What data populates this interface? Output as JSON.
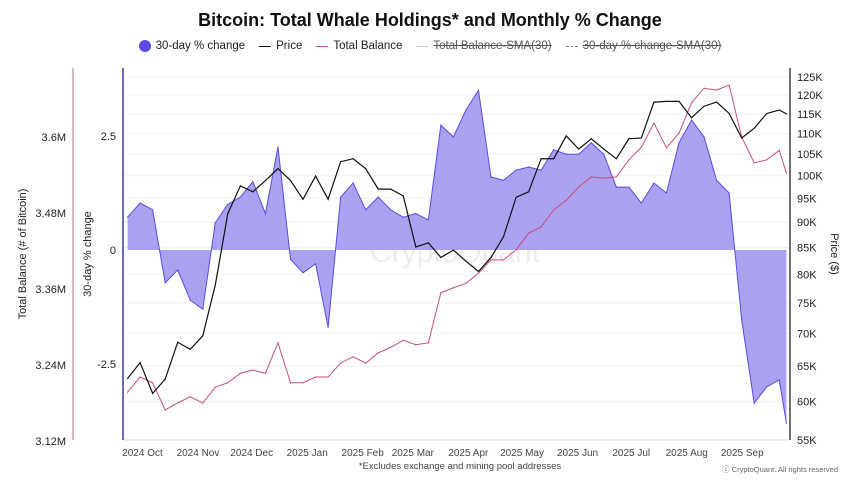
{
  "chart_data": {
    "type": "area+line",
    "title": "Bitcoin: Total Whale Holdings* and Monthly % Change",
    "footnote": "*Excludes exchange and mining pool addresses",
    "copyright": "ⓒ CryptoQuant. All rights reserved",
    "watermark": "CryptoQuant",
    "legend": [
      {
        "label": "30-day % change",
        "marker": "circle",
        "color": "#5b4ce0",
        "disabled": false
      },
      {
        "label": "Price",
        "marker": "line",
        "color": "#111111",
        "disabled": false
      },
      {
        "label": "Total Balance",
        "marker": "line",
        "color": "#c9507a",
        "disabled": false
      },
      {
        "label": "Total Balance-SMA(30)",
        "marker": "line",
        "color": "#cccccc",
        "disabled": true
      },
      {
        "label": "30-day % change-SMA(30)",
        "marker": "dashed",
        "color": "#888888",
        "disabled": true
      }
    ],
    "legend_position": "top",
    "xlim": [
      "2024-09-19",
      "2025-09-26"
    ],
    "x_ticks": [
      {
        "date": "2024-10-01",
        "label": "2024 Oct"
      },
      {
        "date": "2024-11-01",
        "label": "2024 Nov"
      },
      {
        "date": "2024-12-01",
        "label": "2024 Dec"
      },
      {
        "date": "2025-01-01",
        "label": "2025 Jan"
      },
      {
        "date": "2025-02-01",
        "label": "2025 Feb"
      },
      {
        "date": "2025-03-01",
        "label": "2025 Mar"
      },
      {
        "date": "2025-04-01",
        "label": "2025 Apr"
      },
      {
        "date": "2025-05-01",
        "label": "2025 May"
      },
      {
        "date": "2025-06-01",
        "label": "2025 Jun"
      },
      {
        "date": "2025-07-01",
        "label": "2025 Jul"
      },
      {
        "date": "2025-08-01",
        "label": "2025 Aug"
      },
      {
        "date": "2025-09-01",
        "label": "2025 Sep"
      }
    ],
    "axes": {
      "balance": {
        "label": "Total Balance (# of Bitcoin)",
        "side": "left-outer",
        "range": [
          3.12,
          3.72
        ],
        "unit": "M",
        "ticks": [
          {
            "v": 3.6,
            "label": "3.6M"
          },
          {
            "v": 3.48,
            "label": "3.48M"
          },
          {
            "v": 3.36,
            "label": "3.36M"
          },
          {
            "v": 3.24,
            "label": "3.24M"
          },
          {
            "v": 3.12,
            "label": "3.12M"
          }
        ],
        "color": "#c9a0b0"
      },
      "pct": {
        "label": "30-day % change",
        "side": "left-inner",
        "range": [
          -4.1,
          4.0
        ],
        "ticks": [
          {
            "v": 2.5,
            "label": "2.5"
          },
          {
            "v": 0,
            "label": "0"
          },
          {
            "v": -2.5,
            "label": "-2.5"
          }
        ],
        "color": "#3a3aa0"
      },
      "price": {
        "label": "Price ($)",
        "side": "right",
        "scale": "log",
        "range": [
          55000,
          125000
        ],
        "ticks": [
          {
            "v": 125000,
            "label": "125K"
          },
          {
            "v": 120000,
            "label": "120K"
          },
          {
            "v": 115000,
            "label": "115K"
          },
          {
            "v": 110000,
            "label": "110K"
          },
          {
            "v": 105000,
            "label": "105K"
          },
          {
            "v": 100000,
            "label": "100K"
          },
          {
            "v": 95000,
            "label": "95K"
          },
          {
            "v": 90000,
            "label": "90K"
          },
          {
            "v": 85000,
            "label": "85K"
          },
          {
            "v": 80000,
            "label": "80K"
          },
          {
            "v": 75000,
            "label": "75K"
          },
          {
            "v": 70000,
            "label": "70K"
          },
          {
            "v": 65000,
            "label": "65K"
          },
          {
            "v": 60000,
            "label": "60K"
          },
          {
            "v": 55000,
            "label": "55K"
          }
        ],
        "color": "#111111"
      }
    },
    "grid": "horizontal at price ticks",
    "x": [
      "2024-09-21",
      "2024-09-28",
      "2024-10-05",
      "2024-10-12",
      "2024-10-19",
      "2024-10-26",
      "2024-11-02",
      "2024-11-09",
      "2024-11-16",
      "2024-11-23",
      "2024-11-30",
      "2024-12-07",
      "2024-12-14",
      "2024-12-21",
      "2024-12-28",
      "2025-01-04",
      "2025-01-11",
      "2025-01-18",
      "2025-01-25",
      "2025-02-01",
      "2025-02-08",
      "2025-02-15",
      "2025-02-22",
      "2025-03-01",
      "2025-03-08",
      "2025-03-15",
      "2025-03-22",
      "2025-03-29",
      "2025-04-05",
      "2025-04-12",
      "2025-04-19",
      "2025-04-26",
      "2025-05-03",
      "2025-05-10",
      "2025-05-17",
      "2025-05-24",
      "2025-05-31",
      "2025-06-07",
      "2025-06-14",
      "2025-06-21",
      "2025-06-28",
      "2025-07-05",
      "2025-07-12",
      "2025-07-19",
      "2025-07-26",
      "2025-08-02",
      "2025-08-09",
      "2025-08-16",
      "2025-08-23",
      "2025-08-30",
      "2025-09-06",
      "2025-09-13",
      "2025-09-20",
      "2025-09-24"
    ],
    "series": [
      {
        "name": "30-day % change",
        "axis": "pct",
        "kind": "area",
        "color": "#5b4ce0",
        "fill": "#a79cf0",
        "values": [
          0.72,
          1.03,
          0.88,
          -0.72,
          -0.44,
          -1.1,
          -1.3,
          0.6,
          1.0,
          1.16,
          1.5,
          0.8,
          2.26,
          -0.2,
          -0.5,
          -0.3,
          -1.7,
          1.16,
          1.47,
          0.88,
          1.16,
          0.88,
          0.72,
          0.8,
          0.66,
          2.74,
          2.48,
          3.07,
          3.5,
          1.6,
          1.53,
          1.75,
          1.82,
          1.75,
          2.2,
          2.1,
          2.1,
          2.35,
          2.1,
          1.38,
          1.38,
          1.03,
          1.47,
          1.25,
          2.35,
          2.85,
          2.48,
          1.53,
          1.25,
          -1.53,
          -3.36,
          -3.0,
          -2.85,
          -3.8
        ]
      },
      {
        "name": "Price",
        "axis": "price",
        "kind": "line",
        "color": "#111111",
        "values": [
          63200,
          65500,
          61100,
          63100,
          68600,
          67500,
          69600,
          78100,
          91800,
          97700,
          96400,
          98900,
          101600,
          98900,
          94800,
          99900,
          94800,
          103200,
          103900,
          101600,
          97000,
          97000,
          95500,
          85100,
          85900,
          83100,
          84500,
          82400,
          80500,
          83100,
          87100,
          95200,
          96400,
          103900,
          103900,
          109400,
          106200,
          108700,
          106200,
          103900,
          108700,
          108900,
          118100,
          118300,
          118300,
          114000,
          117000,
          118100,
          115100,
          108900,
          111300,
          115100,
          116000,
          115000
        ]
      },
      {
        "name": "Total Balance",
        "axis": "balance",
        "kind": "line",
        "color": "#c9507a",
        "values": [
          3.197,
          3.221,
          3.212,
          3.169,
          3.18,
          3.19,
          3.18,
          3.205,
          3.212,
          3.227,
          3.232,
          3.227,
          3.275,
          3.212,
          3.212,
          3.221,
          3.221,
          3.243,
          3.253,
          3.243,
          3.259,
          3.268,
          3.279,
          3.272,
          3.275,
          3.354,
          3.362,
          3.369,
          3.385,
          3.406,
          3.406,
          3.422,
          3.448,
          3.458,
          3.485,
          3.5,
          3.521,
          3.537,
          3.535,
          3.537,
          3.564,
          3.584,
          3.622,
          3.583,
          3.606,
          3.654,
          3.677,
          3.674,
          3.682,
          3.6,
          3.559,
          3.564,
          3.579,
          3.543
        ]
      }
    ]
  }
}
